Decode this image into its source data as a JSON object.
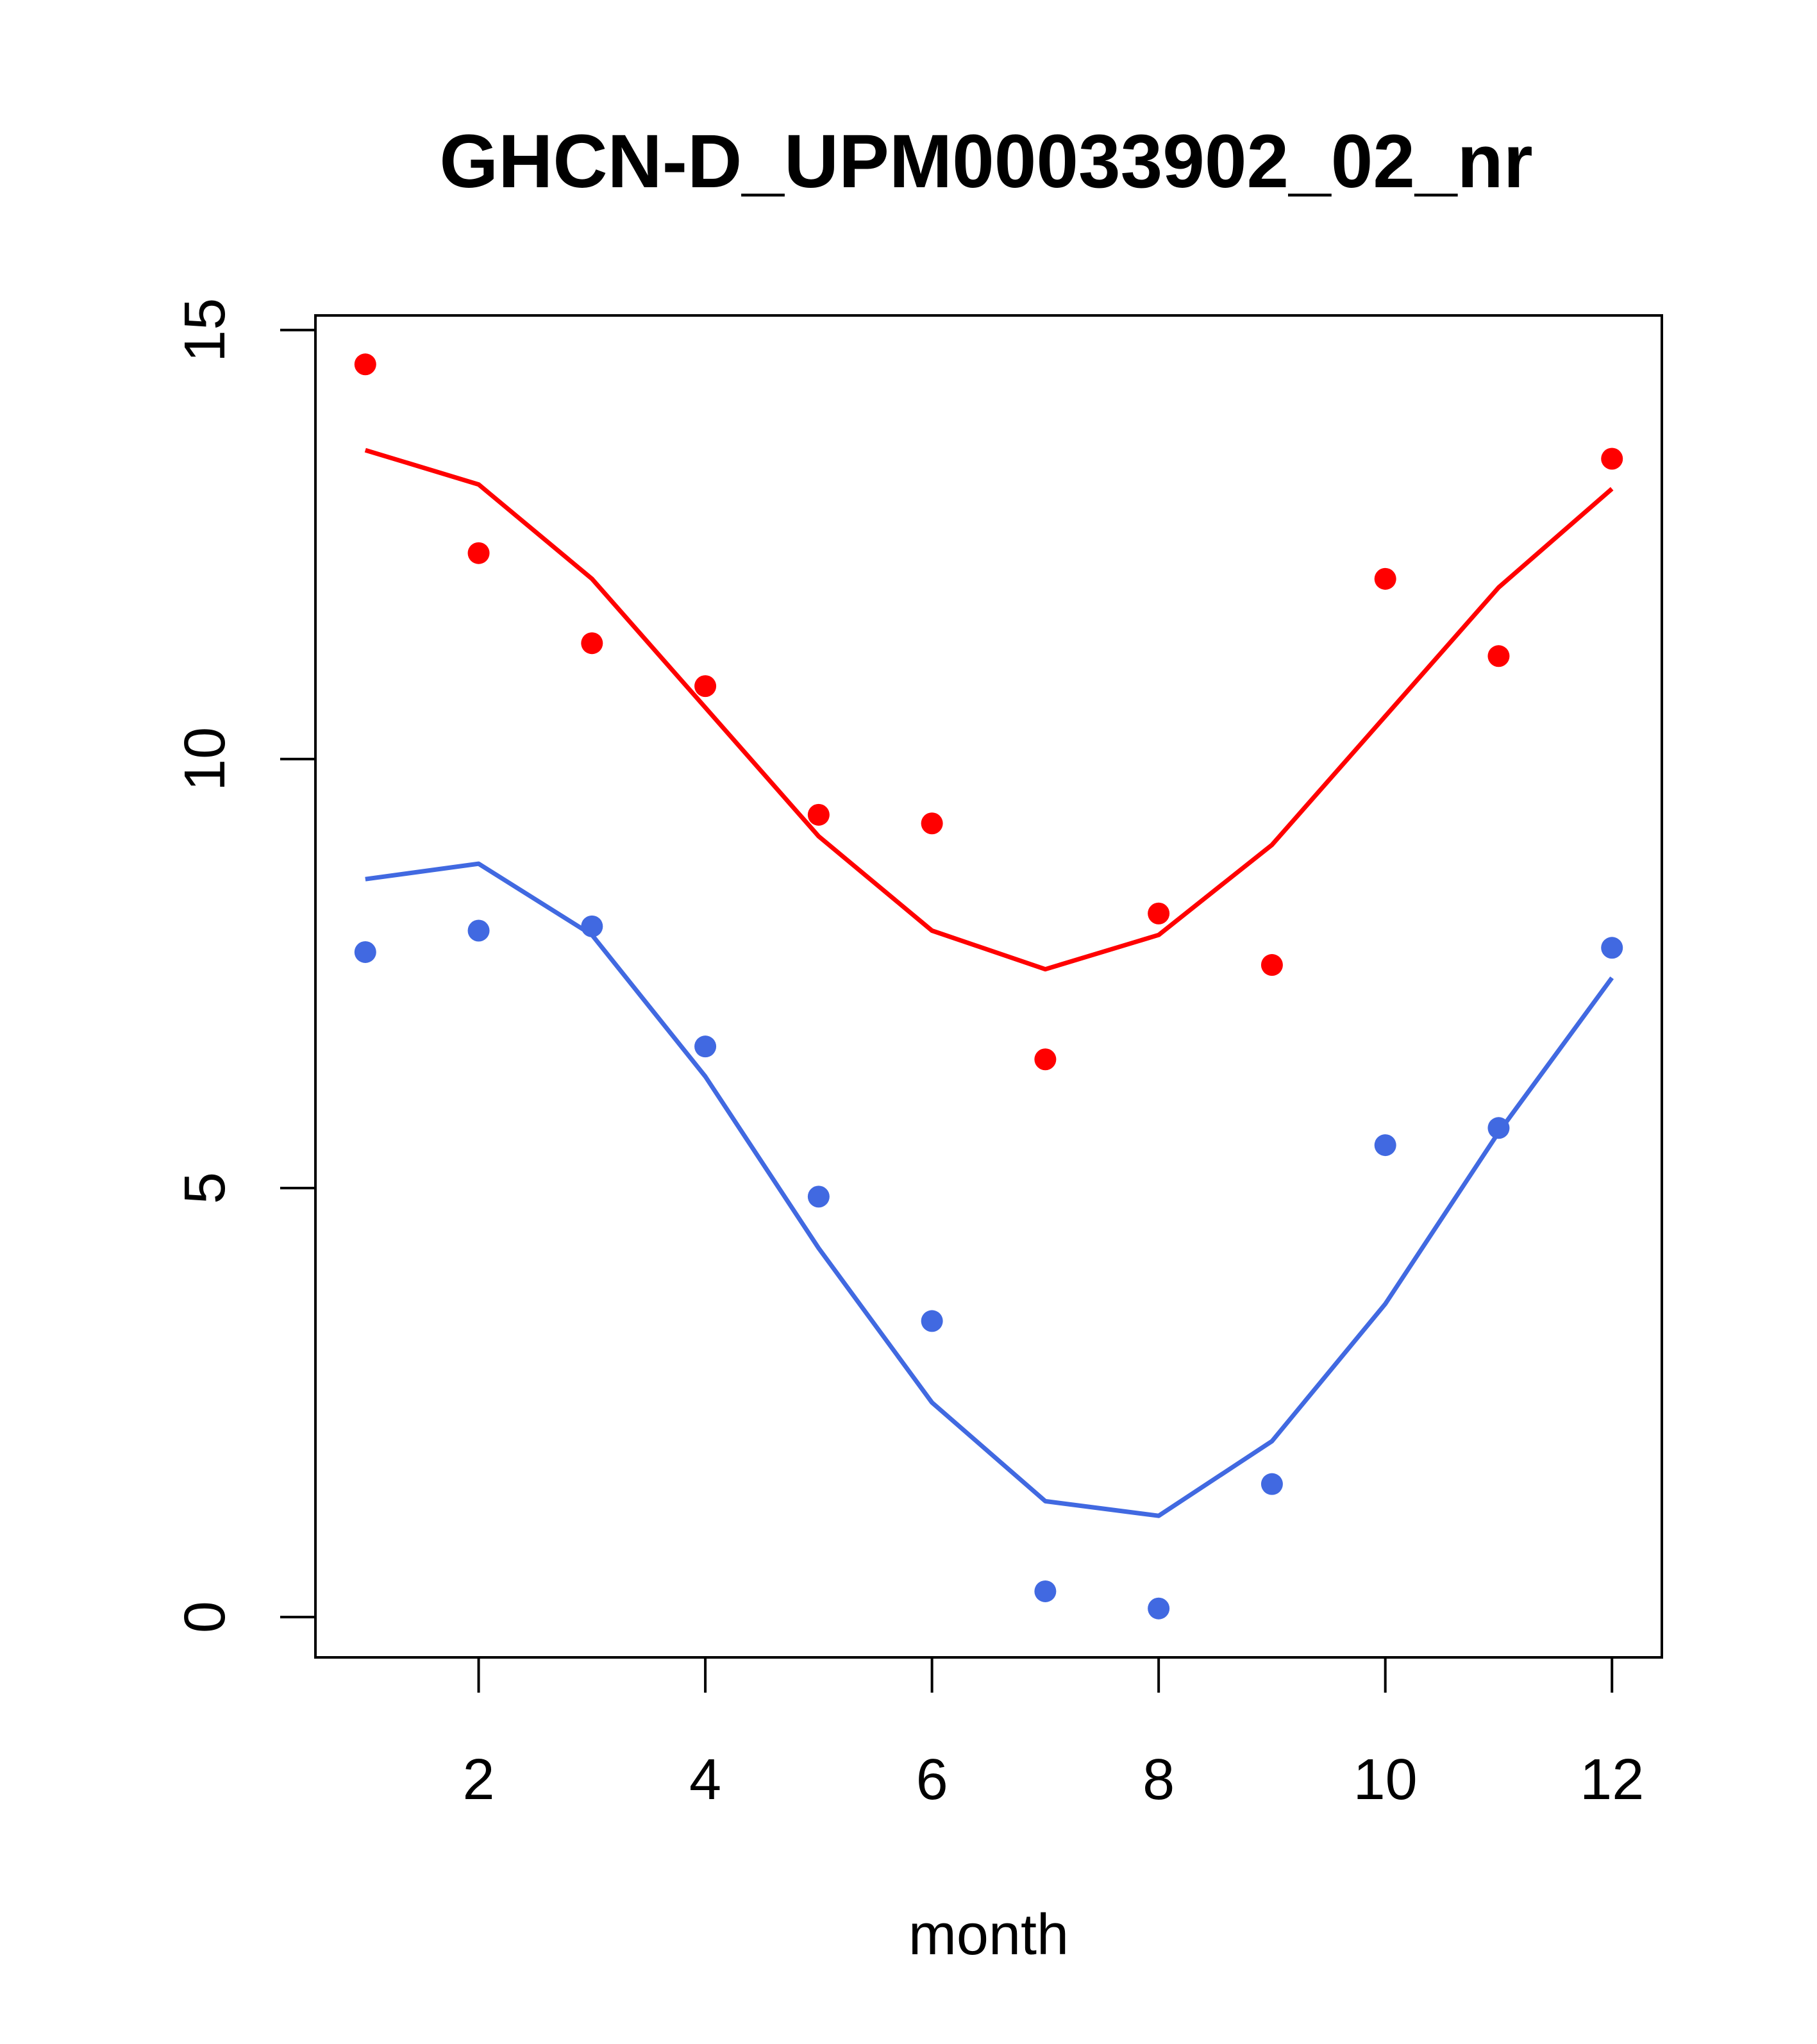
{
  "chart_data": {
    "type": "scatter",
    "title": "GHCN-D_UPM00033902_02_nr",
    "xlabel": "month",
    "ylabel": "",
    "xlim": [
      0.56,
      12.44
    ],
    "ylim": [
      -0.47,
      15.17
    ],
    "x_ticks": [
      2,
      4,
      6,
      8,
      10,
      12
    ],
    "y_ticks": [
      0,
      5,
      10,
      15
    ],
    "grid": false,
    "legend": "none",
    "x": [
      1,
      2,
      3,
      4,
      5,
      6,
      7,
      8,
      9,
      10,
      11,
      12
    ],
    "series": [
      {
        "color": "#ff0000",
        "points": [
          14.6,
          12.4,
          11.35,
          10.85,
          9.35,
          9.25,
          6.5,
          8.2,
          7.6,
          12.1,
          11.2,
          13.5
        ],
        "line": [
          13.6,
          13.2,
          12.1,
          10.6,
          9.1,
          8.0,
          7.55,
          7.95,
          9.0,
          10.5,
          12.0,
          13.15
        ]
      },
      {
        "color": "#4169e1",
        "points": [
          7.75,
          8.0,
          8.05,
          6.65,
          4.9,
          3.45,
          0.3,
          0.1,
          1.55,
          5.5,
          5.7,
          7.8
        ],
        "line": [
          8.6,
          8.78,
          7.95,
          6.3,
          4.3,
          2.5,
          1.35,
          1.18,
          2.05,
          3.65,
          5.65,
          7.45
        ]
      }
    ]
  }
}
